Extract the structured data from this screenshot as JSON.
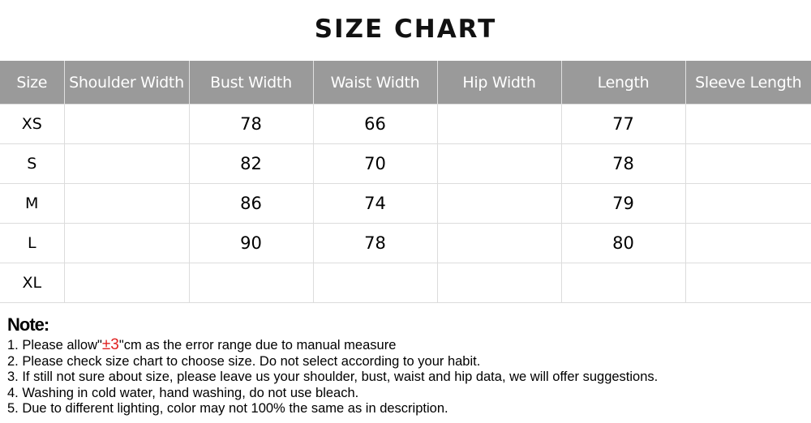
{
  "title": "SIZE CHART",
  "table": {
    "headers": [
      "Size",
      "Shoulder Width",
      "Bust Width",
      "Waist Width",
      "Hip Width",
      "Length",
      "Sleeve Length"
    ],
    "rows": [
      [
        "XS",
        "",
        "78",
        "66",
        "",
        "77",
        ""
      ],
      [
        "S",
        "",
        "82",
        "70",
        "",
        "78",
        ""
      ],
      [
        "M",
        "",
        "86",
        "74",
        "",
        "79",
        ""
      ],
      [
        "L",
        "",
        "90",
        "78",
        "",
        "80",
        ""
      ],
      [
        "XL",
        "",
        "",
        "",
        "",
        "",
        ""
      ]
    ]
  },
  "notes": {
    "heading": "Note:",
    "line1_prefix": "1. Please allow\"",
    "line1_highlight": "±3",
    "line1_suffix": "\"cm as the error range due to manual measure",
    "lines": [
      "2. Please check size chart to choose size. Do not select according to your habit.",
      "3. If still not sure about size, please leave us your shoulder, bust, waist and hip data, we will offer suggestions.",
      "4. Washing in cold water, hand washing, do not use bleach.",
      "5. Due to different lighting, color may not 100% the same as in description."
    ]
  },
  "colors": {
    "header_bg": "#9a9a9a",
    "highlight": "#e0201f"
  }
}
